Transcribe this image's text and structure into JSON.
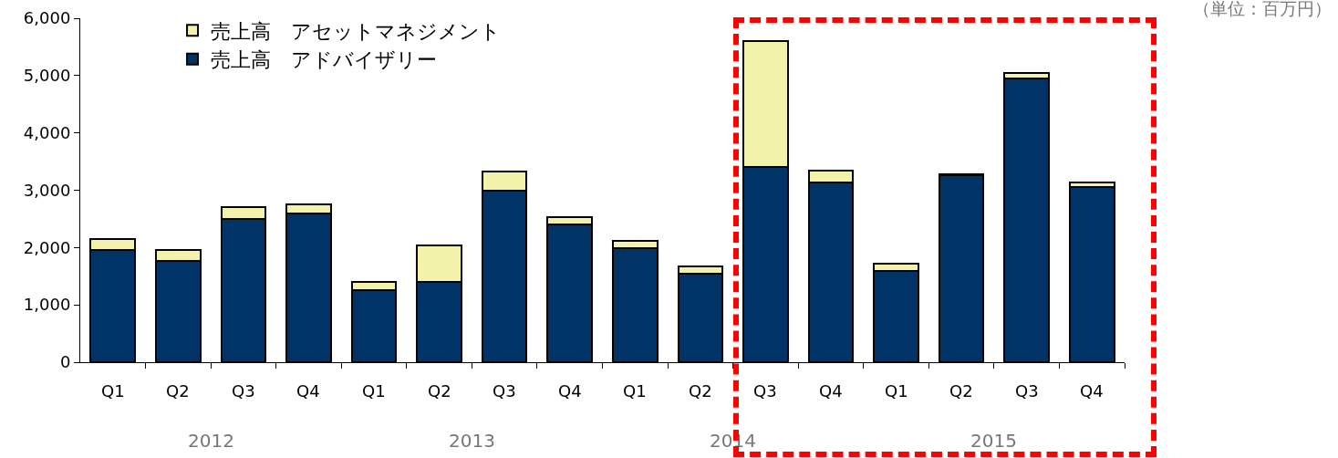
{
  "chart_data": {
    "type": "bar",
    "stacked": true,
    "categories": [
      "Q1",
      "Q2",
      "Q3",
      "Q4",
      "Q1",
      "Q2",
      "Q3",
      "Q4",
      "Q1",
      "Q2",
      "Q3",
      "Q4",
      "Q1",
      "Q2",
      "Q3",
      "Q4"
    ],
    "series": [
      {
        "name": "売上高　アドバイザリー",
        "color": "#003366",
        "values": [
          1960,
          1770,
          2500,
          2590,
          1250,
          1400,
          3000,
          2400,
          1990,
          1550,
          3410,
          3140,
          1590,
          3260,
          4950,
          3060
        ]
      },
      {
        "name": "売上高　アセットマネジメント",
        "color": "#f2f2aa",
        "values": [
          190,
          190,
          200,
          160,
          150,
          630,
          320,
          130,
          120,
          120,
          2190,
          210,
          130,
          20,
          90,
          80
        ]
      }
    ],
    "ylim": [
      0,
      6000
    ],
    "yticks": [
      0,
      {
        "value": 1000,
        "label": "1,000"
      },
      {
        "value": 2000,
        "label": "2,000"
      },
      {
        "value": 3000,
        "label": "3,000"
      },
      {
        "value": 4000,
        "label": "4,000"
      },
      {
        "value": 5000,
        "label": "5,000"
      },
      {
        "value": 6000,
        "label": "6,000"
      }
    ],
    "grid": false,
    "legend": "top left",
    "annotations": [
      "2012",
      "2013",
      "2014",
      "2015",
      "（単位：百万円）"
    ]
  }
}
